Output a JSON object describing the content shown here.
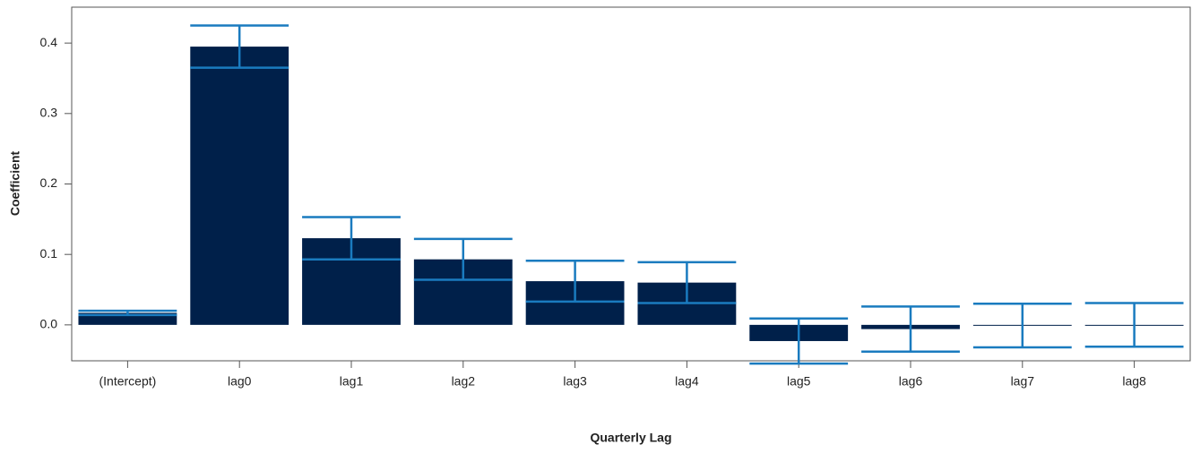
{
  "chart_data": {
    "type": "bar",
    "xlabel": "Quarterly Lag",
    "ylabel": "Coefficient",
    "categories": [
      "(Intercept)",
      "lag0",
      "lag1",
      "lag2",
      "lag3",
      "lag4",
      "lag5",
      "lag6",
      "lag7",
      "lag8"
    ],
    "values": [
      0.017,
      0.395,
      0.123,
      0.093,
      0.062,
      0.06,
      -0.023,
      -0.006,
      -0.001,
      0.0
    ],
    "errors": [
      0.003,
      0.03,
      0.03,
      0.029,
      0.029,
      0.029,
      0.032,
      0.032,
      0.031,
      0.031
    ],
    "color": "#00204a",
    "error_color": "#1a7bbf",
    "ylim": [
      -0.051,
      0.451
    ],
    "yticks": [
      {
        "value": 0,
        "label": "0.0"
      },
      0.1,
      0.2,
      0.3,
      0.4
    ],
    "grid": false
  }
}
